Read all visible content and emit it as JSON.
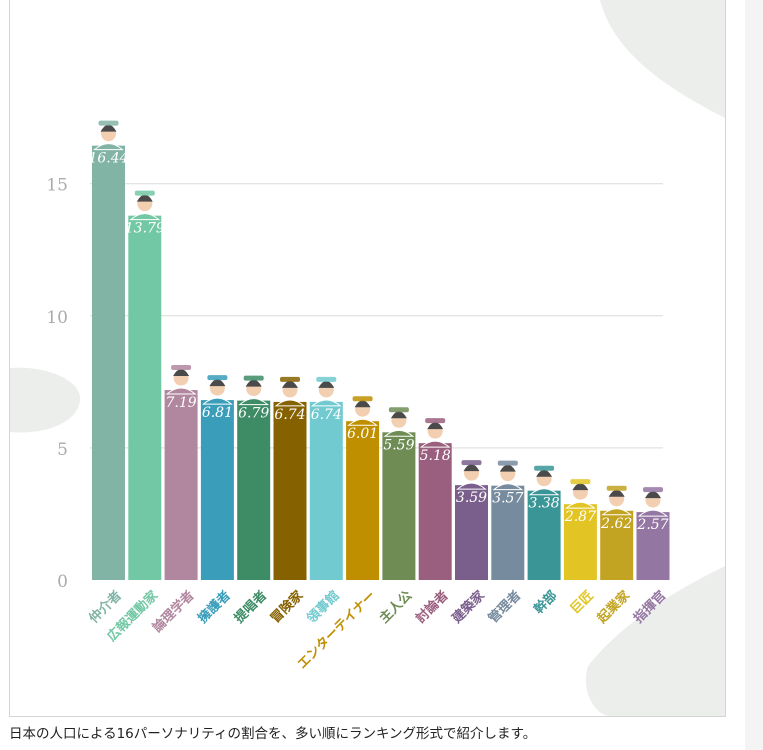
{
  "chart_data": {
    "type": "bar",
    "categories": [
      "仲介者",
      "広報運動家",
      "論理学者",
      "擁護者",
      "提唱者",
      "冒険家",
      "領事館",
      "エンターテイナー",
      "主人公",
      "討論者",
      "建築家",
      "管理者",
      "幹部",
      "巨匠",
      "起業家",
      "指揮官"
    ],
    "values": [
      16.44,
      13.79,
      7.19,
      6.81,
      6.79,
      6.74,
      6.74,
      6.01,
      5.59,
      5.18,
      3.59,
      3.57,
      3.38,
      2.87,
      2.62,
      2.57
    ],
    "value_labels": [
      "16.44",
      "13.79",
      "7.19",
      "6.81",
      "6.79",
      "6.74",
      "6.74",
      "6.01",
      "5.59",
      "5.18",
      "3.59",
      "3.57",
      "3.38",
      "2.87",
      "2.62",
      "2.57"
    ],
    "colors": [
      "#82b4a6",
      "#72c8a4",
      "#b1879f",
      "#3a9ebb",
      "#3d8c66",
      "#856100",
      "#71cad0",
      "#bf8f00",
      "#6f8c55",
      "#9a5f7e",
      "#7a5f8c",
      "#778b9e",
      "#3a9597",
      "#e2c525",
      "#c2a322",
      "#9476a2"
    ],
    "y_ticks": [
      0,
      5,
      10,
      15
    ],
    "ylim": [
      0,
      17.6
    ],
    "grid": true,
    "legend": "none"
  },
  "caption": "日本の人口による16パーソナリティの割合を、多い順にランキング形式で紹介します。"
}
